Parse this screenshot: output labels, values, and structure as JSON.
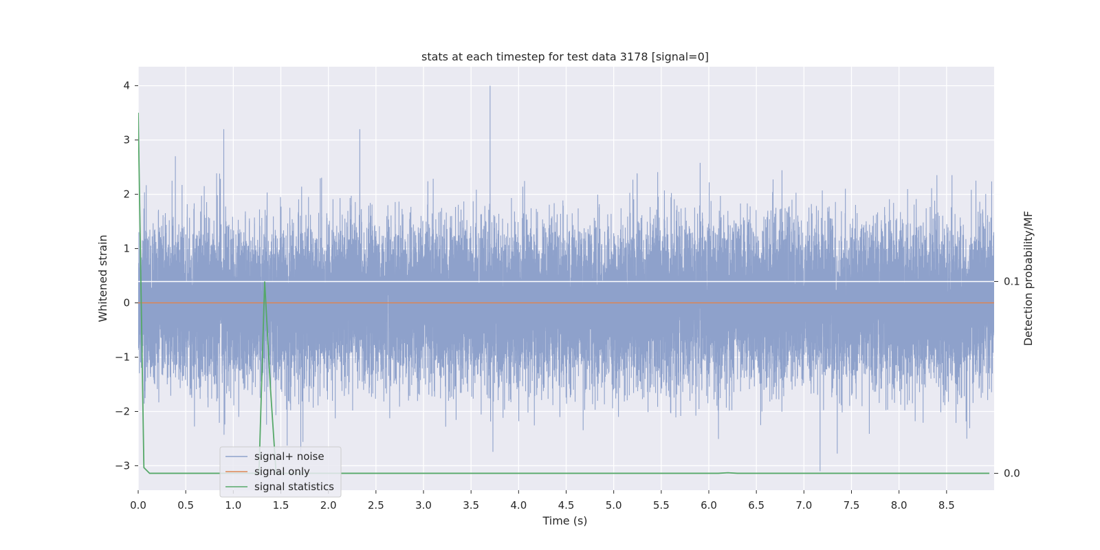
{
  "chart_data": {
    "type": "line",
    "title": "stats at each timestep for test data 3178 [signal=0]",
    "xlabel": "Time (s)",
    "ylabel": "Whitened strain",
    "y2label": "Detection probability/MF",
    "xlim": [
      0.0,
      9.0
    ],
    "ylim": [
      -3.45,
      4.35
    ],
    "y2lim": [
      -0.0088,
      0.212
    ],
    "x_ticks": [
      "0.0",
      "0.5",
      "1.0",
      "1.5",
      "2.0",
      "2.5",
      "3.0",
      "3.5",
      "4.0",
      "4.5",
      "5.0",
      "5.5",
      "6.0",
      "6.5",
      "7.0",
      "7.5",
      "8.0",
      "8.5"
    ],
    "y_ticks": [
      "−3",
      "−2",
      "−1",
      "0",
      "1",
      "2",
      "3",
      "4"
    ],
    "y2_ticks": [
      "0.0",
      "0.1"
    ],
    "grid": true,
    "legend_position": "lower-left",
    "series": [
      {
        "name": "signal+ noise",
        "axis": "left",
        "color": "#8ea1cb",
        "sample_rate_hz": 2048,
        "distribution": "gaussian noise, mean 0, sd ~0.7, approx range -3.1 to 4.0",
        "notable_peaks": [
          {
            "x": 0.9,
            "y": 3.2
          },
          {
            "x": 2.33,
            "y": 3.2
          },
          {
            "x": 3.7,
            "y": 4.0
          },
          {
            "x": 7.17,
            "y": -3.1
          }
        ]
      },
      {
        "name": "signal only",
        "axis": "left",
        "color": "#dd8452",
        "x": [
          0.0,
          9.0
        ],
        "y": [
          0.0,
          0.0
        ]
      },
      {
        "name": "signal statistics",
        "axis": "right",
        "color": "#55a868",
        "x": [
          0.0,
          0.06,
          0.12,
          0.18,
          1.2,
          1.27,
          1.33,
          1.39,
          1.45,
          1.51,
          6.1,
          6.2,
          6.3,
          8.95
        ],
        "y": [
          0.188,
          0.003,
          0.0,
          0.0,
          0.0,
          0.0,
          0.1,
          0.045,
          0.0,
          0.0,
          0.0,
          0.0003,
          0.0,
          0.0
        ]
      }
    ],
    "reference_lines": [
      {
        "axis": "right",
        "y": 0.1,
        "color": "#ffffff"
      }
    ]
  }
}
